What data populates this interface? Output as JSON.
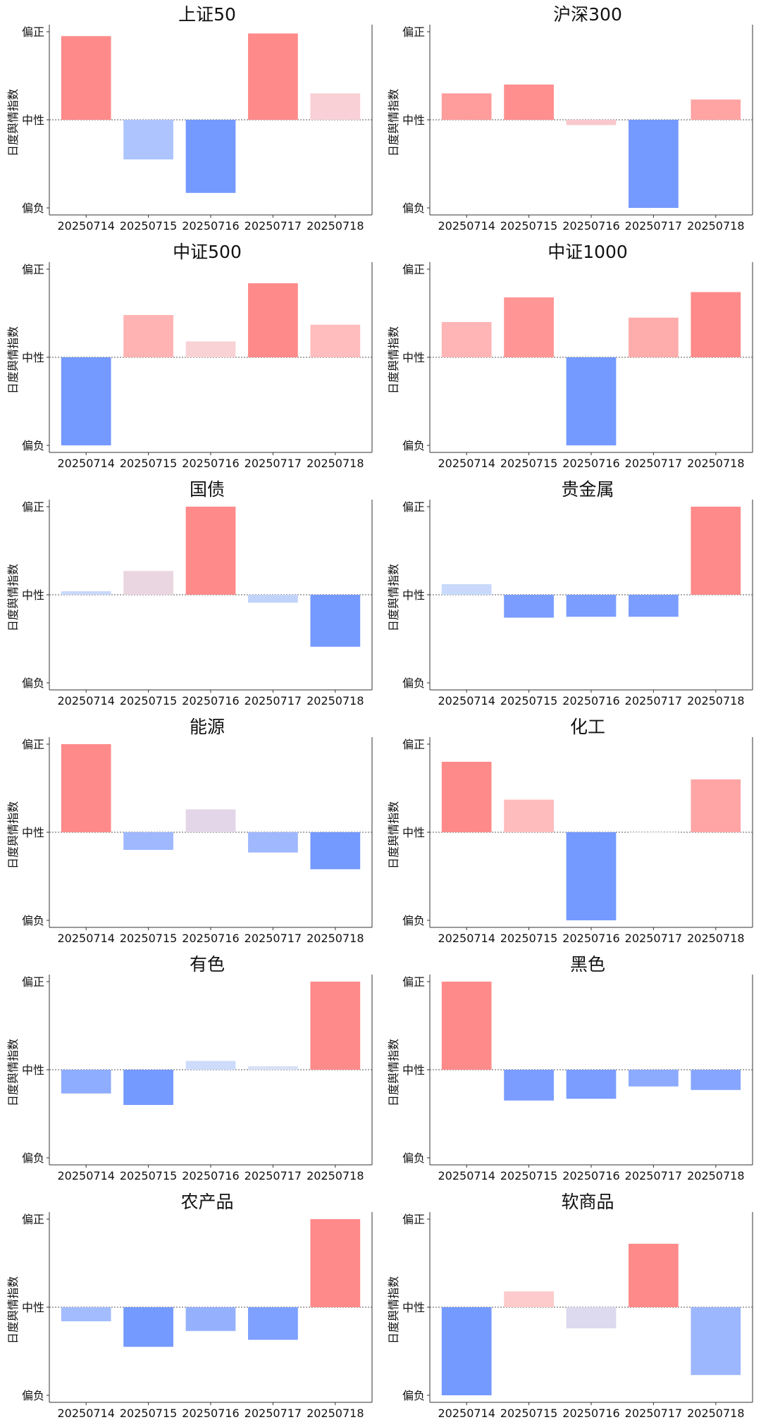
{
  "chart_data": [
    {
      "type": "bar",
      "title": "上证50",
      "ylabel": "日度舆情指数",
      "yticks": [
        "偏正",
        "中性",
        "偏负"
      ],
      "ylim": [
        -1,
        1
      ],
      "categories": [
        "20250714",
        "20250715",
        "20250716",
        "20250717",
        "20250718"
      ],
      "values": [
        0.95,
        -0.45,
        -0.83,
        0.98,
        0.3
      ],
      "colors": [
        "#ff8a8a",
        "#adc4ff",
        "#7499ff",
        "#ff8a8a",
        "#f8d0d6"
      ]
    },
    {
      "type": "bar",
      "title": "沪深300",
      "ylabel": "日度舆情指数",
      "yticks": [
        "偏正",
        "中性",
        "偏负"
      ],
      "ylim": [
        -1,
        1
      ],
      "categories": [
        "20250714",
        "20250715",
        "20250716",
        "20250717",
        "20250718"
      ],
      "values": [
        0.3,
        0.4,
        -0.06,
        -1.0,
        0.23
      ],
      "colors": [
        "#ff9c9c",
        "#ff8f8f",
        "#f8c8cc",
        "#7499ff",
        "#ffa3a3"
      ]
    },
    {
      "type": "bar",
      "title": "中证500",
      "ylabel": "日度舆情指数",
      "yticks": [
        "偏正",
        "中性",
        "偏负"
      ],
      "ylim": [
        -1,
        1
      ],
      "categories": [
        "20250714",
        "20250715",
        "20250716",
        "20250717",
        "20250718"
      ],
      "values": [
        -1.0,
        0.48,
        0.18,
        0.84,
        0.37
      ],
      "colors": [
        "#7499ff",
        "#ffb3b3",
        "#f9d2d6",
        "#ff8a8a",
        "#ffbdbd"
      ]
    },
    {
      "type": "bar",
      "title": "中证1000",
      "ylabel": "日度舆情指数",
      "yticks": [
        "偏正",
        "中性",
        "偏负"
      ],
      "ylim": [
        -1,
        1
      ],
      "categories": [
        "20250714",
        "20250715",
        "20250716",
        "20250717",
        "20250718"
      ],
      "values": [
        0.4,
        0.68,
        -1.0,
        0.45,
        0.74
      ],
      "colors": [
        "#ffb5b5",
        "#ff9595",
        "#7499ff",
        "#ffacac",
        "#ff8a8a"
      ]
    },
    {
      "type": "bar",
      "title": "国债",
      "ylabel": "日度舆情指数",
      "yticks": [
        "偏正",
        "中性",
        "偏负"
      ],
      "ylim": [
        -1,
        1
      ],
      "categories": [
        "20250714",
        "20250715",
        "20250716",
        "20250717",
        "20250718"
      ],
      "values": [
        0.04,
        0.27,
        1.0,
        -0.09,
        -0.59
      ],
      "colors": [
        "#c9d8fb",
        "#ead6e0",
        "#ff8a8a",
        "#c2d3fb",
        "#7499ff"
      ]
    },
    {
      "type": "bar",
      "title": "贵金属",
      "ylabel": "日度舆情指数",
      "yticks": [
        "偏正",
        "中性",
        "偏负"
      ],
      "ylim": [
        -1,
        1
      ],
      "categories": [
        "20250714",
        "20250715",
        "20250716",
        "20250717",
        "20250718"
      ],
      "values": [
        0.12,
        -0.26,
        -0.25,
        -0.25,
        1.0
      ],
      "colors": [
        "#c8d9fb",
        "#7a9dff",
        "#7a9dff",
        "#7a9dff",
        "#ff8a8a"
      ]
    },
    {
      "type": "bar",
      "title": "能源",
      "ylabel": "日度舆情指数",
      "yticks": [
        "偏正",
        "中性",
        "偏负"
      ],
      "ylim": [
        -1,
        1
      ],
      "categories": [
        "20250714",
        "20250715",
        "20250716",
        "20250717",
        "20250718"
      ],
      "values": [
        1.0,
        -0.2,
        0.26,
        -0.23,
        -0.42
      ],
      "colors": [
        "#ff8a8a",
        "#9fb8fe",
        "#e3d6e8",
        "#9fb8fe",
        "#7499ff"
      ]
    },
    {
      "type": "bar",
      "title": "化工",
      "ylabel": "日度舆情指数",
      "yticks": [
        "偏正",
        "中性",
        "偏负"
      ],
      "ylim": [
        -1,
        1
      ],
      "categories": [
        "20250714",
        "20250715",
        "20250716",
        "20250717",
        "20250718"
      ],
      "values": [
        0.8,
        0.37,
        -1.0,
        0.0,
        0.6
      ],
      "colors": [
        "#ff8a8a",
        "#ffbcbc",
        "#7499ff",
        "#f0f0f0",
        "#ffa5a5"
      ]
    },
    {
      "type": "bar",
      "title": "有色",
      "ylabel": "日度舆情指数",
      "yticks": [
        "偏正",
        "中性",
        "偏负"
      ],
      "ylim": [
        -1,
        1
      ],
      "categories": [
        "20250714",
        "20250715",
        "20250716",
        "20250717",
        "20250718"
      ],
      "values": [
        -0.27,
        -0.4,
        0.1,
        0.04,
        1.0
      ],
      "colors": [
        "#8fadfe",
        "#7499ff",
        "#cddcfb",
        "#d9e1f7",
        "#ff8a8a"
      ]
    },
    {
      "type": "bar",
      "title": "黑色",
      "ylabel": "日度舆情指数",
      "yticks": [
        "偏正",
        "中性",
        "偏负"
      ],
      "ylim": [
        -1,
        1
      ],
      "categories": [
        "20250714",
        "20250715",
        "20250716",
        "20250717",
        "20250718"
      ],
      "values": [
        1.0,
        -0.35,
        -0.33,
        -0.19,
        -0.23
      ],
      "colors": [
        "#ff8a8a",
        "#7a9dff",
        "#7a9dff",
        "#8caafe",
        "#86a5fe"
      ]
    },
    {
      "type": "bar",
      "title": "农产品",
      "ylabel": "日度舆情指数",
      "yticks": [
        "偏正",
        "中性",
        "偏负"
      ],
      "ylim": [
        -1,
        1
      ],
      "categories": [
        "20250714",
        "20250715",
        "20250716",
        "20250717",
        "20250718"
      ],
      "values": [
        -0.16,
        -0.45,
        -0.27,
        -0.37,
        1.0
      ],
      "colors": [
        "#a3bcfe",
        "#7499ff",
        "#95b1fe",
        "#7ea0ff",
        "#ff8a8a"
      ]
    },
    {
      "type": "bar",
      "title": "软商品",
      "ylabel": "日度舆情指数",
      "yticks": [
        "偏正",
        "中性",
        "偏负"
      ],
      "ylim": [
        -1,
        1
      ],
      "categories": [
        "20250714",
        "20250715",
        "20250716",
        "20250717",
        "20250718"
      ],
      "values": [
        -1.0,
        0.18,
        -0.24,
        0.72,
        -0.77
      ],
      "colors": [
        "#7499ff",
        "#fdcbcb",
        "#ddd9ee",
        "#ff8a8a",
        "#9db7fe"
      ]
    }
  ]
}
